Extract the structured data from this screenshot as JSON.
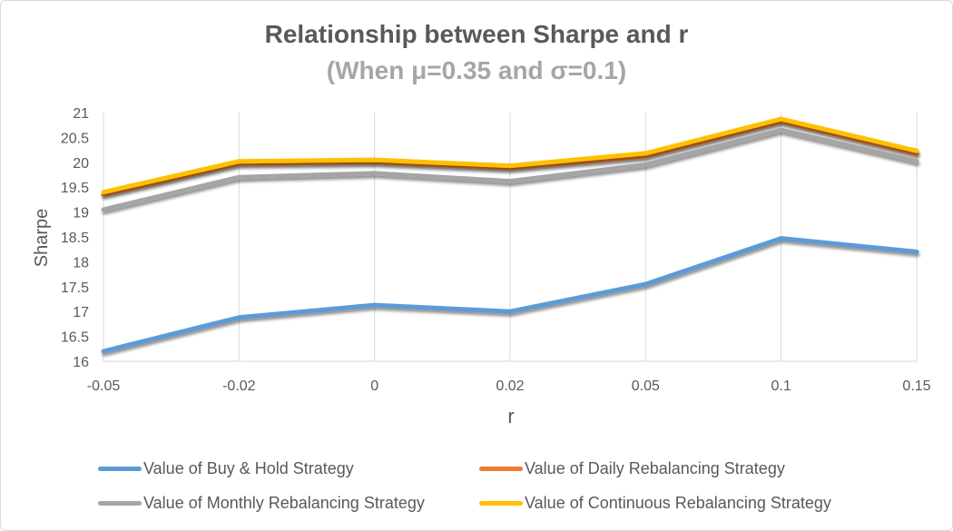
{
  "chart_data": {
    "type": "line",
    "title": "Relationship between Sharpe and r",
    "subtitle": "(When μ=0.35 and σ=0.1)",
    "xlabel": "r",
    "ylabel": "Sharpe",
    "categories": [
      "-0.05",
      "-0.02",
      "0",
      "0.02",
      "0.05",
      "0.1",
      "0.15"
    ],
    "ylim": [
      16,
      21
    ],
    "yticks": [
      "16",
      "16.5",
      "17",
      "17.5",
      "18",
      "18.5",
      "19",
      "19.5",
      "20",
      "20.5",
      "21"
    ],
    "grid": "vertical",
    "legend_position": "bottom",
    "series": [
      {
        "name": "Value of Buy & Hold Strategy",
        "color": "#5b9bd5",
        "values": [
          16.2,
          16.88,
          17.13,
          17.0,
          17.55,
          18.47,
          18.2
        ]
      },
      {
        "name": "Value of Daily Rebalancing Strategy",
        "color": "#ed7d31",
        "values": [
          19.35,
          19.97,
          20.0,
          19.88,
          20.12,
          20.82,
          20.17
        ]
      },
      {
        "name": "Value of Monthly Rebalancing Strategy",
        "color": "#a5a5a5",
        "values": [
          19.05,
          19.7,
          19.78,
          19.62,
          19.95,
          20.65,
          20.02
        ]
      },
      {
        "name": "Value of Continuous Rebalancing Strategy",
        "color": "#ffc000",
        "values": [
          19.4,
          20.02,
          20.05,
          19.93,
          20.18,
          20.87,
          20.23
        ]
      }
    ]
  }
}
